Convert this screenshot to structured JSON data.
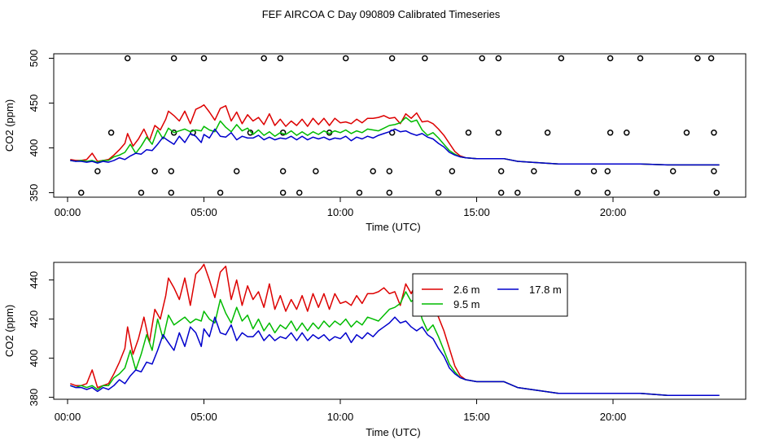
{
  "title": "FEF AIRCOA C  Day 090809  Calibrated Timeseries",
  "colors": {
    "series_2_6": "#dd0000",
    "series_9_5": "#00bb00",
    "series_17_8": "#0000cc",
    "points": "#000000"
  },
  "chart_data": [
    {
      "type": "line",
      "subtitle": "top panel: calibration points and three height series",
      "xlabel": "Time (UTC)",
      "ylabel": "CO2 (ppm)",
      "xlim": [
        0,
        24
      ],
      "ylim": [
        345,
        505
      ],
      "x_ticks": [
        0,
        5,
        10,
        15,
        20
      ],
      "x_tick_labels": [
        "00:00",
        "05:00",
        "10:00",
        "15:00",
        "20:00"
      ],
      "y_ticks": [
        350,
        400,
        450,
        500
      ],
      "y_tick_labels": [
        "350",
        "400",
        "450",
        "500"
      ],
      "grid": false,
      "legend": null,
      "calibration_points": {
        "y500": [
          2.2,
          3.9,
          5.0,
          7.2,
          7.8,
          10.2,
          11.9,
          13.1,
          15.2,
          15.8,
          18.1,
          19.9,
          21.0,
          23.1,
          23.6
        ],
        "y417": [
          1.6,
          3.9,
          4.6,
          6.7,
          7.9,
          9.6,
          11.9,
          14.7,
          15.8,
          17.6,
          19.9,
          20.5,
          22.7,
          23.7
        ],
        "y374": [
          1.1,
          3.2,
          3.8,
          6.2,
          7.9,
          9.1,
          11.2,
          11.8,
          14.1,
          15.9,
          17.1,
          19.3,
          19.8,
          22.2,
          23.7
        ],
        "y350": [
          0.5,
          2.7,
          3.8,
          5.6,
          7.9,
          8.5,
          10.7,
          11.8,
          13.6,
          15.9,
          16.5,
          18.7,
          19.8,
          21.6,
          23.8
        ]
      }
    },
    {
      "type": "line",
      "xlabel": "Time (UTC)",
      "ylabel": "CO2 (ppm)",
      "xlim": [
        0,
        24
      ],
      "ylim": [
        379,
        449
      ],
      "x_ticks": [
        0,
        5,
        10,
        15,
        20
      ],
      "x_tick_labels": [
        "00:00",
        "05:00",
        "10:00",
        "15:00",
        "20:00"
      ],
      "y_ticks": [
        380,
        400,
        420,
        440
      ],
      "y_tick_labels": [
        "380",
        "400",
        "420",
        "440"
      ],
      "grid": false,
      "legend": {
        "position": "top-right",
        "entries": [
          "2.6 m",
          "9.5 m",
          "17.8 m"
        ]
      }
    }
  ],
  "series": [
    {
      "name": "2.6 m",
      "color_key": "series_2_6",
      "points": [
        [
          0.1,
          387
        ],
        [
          0.3,
          386
        ],
        [
          0.5,
          386
        ],
        [
          0.7,
          387
        ],
        [
          0.9,
          394
        ],
        [
          1.1,
          385
        ],
        [
          1.3,
          386
        ],
        [
          1.5,
          387
        ],
        [
          1.7,
          392
        ],
        [
          1.9,
          398
        ],
        [
          2.1,
          405
        ],
        [
          2.2,
          416
        ],
        [
          2.4,
          402
        ],
        [
          2.6,
          410
        ],
        [
          2.8,
          421
        ],
        [
          3.0,
          408
        ],
        [
          3.2,
          425
        ],
        [
          3.4,
          420
        ],
        [
          3.6,
          432
        ],
        [
          3.7,
          441
        ],
        [
          3.9,
          436
        ],
        [
          4.1,
          430
        ],
        [
          4.3,
          441
        ],
        [
          4.5,
          427
        ],
        [
          4.7,
          443
        ],
        [
          4.9,
          446
        ],
        [
          5.0,
          448
        ],
        [
          5.2,
          440
        ],
        [
          5.4,
          431
        ],
        [
          5.6,
          444
        ],
        [
          5.8,
          447
        ],
        [
          6.0,
          430
        ],
        [
          6.2,
          440
        ],
        [
          6.4,
          427
        ],
        [
          6.6,
          437
        ],
        [
          6.8,
          430
        ],
        [
          7.0,
          434
        ],
        [
          7.2,
          426
        ],
        [
          7.4,
          438
        ],
        [
          7.6,
          425
        ],
        [
          7.8,
          432
        ],
        [
          8.0,
          424
        ],
        [
          8.2,
          430
        ],
        [
          8.4,
          425
        ],
        [
          8.6,
          432
        ],
        [
          8.8,
          424
        ],
        [
          9.0,
          433
        ],
        [
          9.2,
          426
        ],
        [
          9.4,
          433
        ],
        [
          9.6,
          425
        ],
        [
          9.8,
          433
        ],
        [
          10.0,
          428
        ],
        [
          10.2,
          429
        ],
        [
          10.4,
          427
        ],
        [
          10.6,
          432
        ],
        [
          10.8,
          428
        ],
        [
          11.0,
          433
        ],
        [
          11.2,
          433
        ],
        [
          11.4,
          434
        ],
        [
          11.6,
          436
        ],
        [
          11.8,
          433
        ],
        [
          12.0,
          434
        ],
        [
          12.2,
          427
        ],
        [
          12.4,
          438
        ],
        [
          12.6,
          433
        ],
        [
          12.8,
          439
        ],
        [
          13.0,
          429
        ],
        [
          13.2,
          430
        ],
        [
          13.4,
          427
        ],
        [
          13.6,
          421
        ],
        [
          13.8,
          414
        ],
        [
          14.0,
          405
        ],
        [
          14.2,
          396
        ],
        [
          14.4,
          391
        ],
        [
          14.6,
          389
        ],
        [
          15.0,
          388
        ],
        [
          15.5,
          388
        ],
        [
          16.0,
          388
        ],
        [
          16.5,
          385
        ],
        [
          17.0,
          384
        ],
        [
          18.0,
          382
        ],
        [
          19.0,
          382
        ],
        [
          20.0,
          382
        ],
        [
          21.0,
          382
        ],
        [
          22.0,
          381
        ],
        [
          23.0,
          381
        ],
        [
          23.9,
          381
        ]
      ]
    },
    {
      "name": "9.5 m",
      "color_key": "series_9_5",
      "points": [
        [
          0.1,
          386
        ],
        [
          0.3,
          385
        ],
        [
          0.5,
          386
        ],
        [
          0.7,
          385
        ],
        [
          0.9,
          386
        ],
        [
          1.1,
          384
        ],
        [
          1.3,
          386
        ],
        [
          1.5,
          386
        ],
        [
          1.7,
          390
        ],
        [
          1.9,
          392
        ],
        [
          2.1,
          395
        ],
        [
          2.3,
          404
        ],
        [
          2.5,
          394
        ],
        [
          2.7,
          402
        ],
        [
          2.9,
          412
        ],
        [
          3.1,
          404
        ],
        [
          3.3,
          420
        ],
        [
          3.5,
          410
        ],
        [
          3.7,
          422
        ],
        [
          3.9,
          417
        ],
        [
          4.1,
          419
        ],
        [
          4.3,
          421
        ],
        [
          4.5,
          418
        ],
        [
          4.7,
          420
        ],
        [
          4.9,
          419
        ],
        [
          5.0,
          424
        ],
        [
          5.2,
          420
        ],
        [
          5.4,
          418
        ],
        [
          5.6,
          430
        ],
        [
          5.8,
          423
        ],
        [
          6.0,
          418
        ],
        [
          6.2,
          426
        ],
        [
          6.4,
          419
        ],
        [
          6.6,
          422
        ],
        [
          6.8,
          415
        ],
        [
          7.0,
          420
        ],
        [
          7.2,
          414
        ],
        [
          7.4,
          418
        ],
        [
          7.6,
          413
        ],
        [
          7.8,
          417
        ],
        [
          8.0,
          415
        ],
        [
          8.2,
          419
        ],
        [
          8.4,
          414
        ],
        [
          8.6,
          418
        ],
        [
          8.8,
          414
        ],
        [
          9.0,
          418
        ],
        [
          9.2,
          415
        ],
        [
          9.4,
          419
        ],
        [
          9.6,
          416
        ],
        [
          9.8,
          419
        ],
        [
          10.0,
          417
        ],
        [
          10.2,
          420
        ],
        [
          10.4,
          416
        ],
        [
          10.6,
          419
        ],
        [
          10.8,
          417
        ],
        [
          11.0,
          421
        ],
        [
          11.2,
          420
        ],
        [
          11.4,
          419
        ],
        [
          11.6,
          422
        ],
        [
          11.8,
          425
        ],
        [
          12.0,
          426
        ],
        [
          12.2,
          428
        ],
        [
          12.4,
          434
        ],
        [
          12.6,
          429
        ],
        [
          12.8,
          431
        ],
        [
          13.0,
          420
        ],
        [
          13.2,
          414
        ],
        [
          13.4,
          417
        ],
        [
          13.6,
          411
        ],
        [
          13.8,
          404
        ],
        [
          14.0,
          397
        ],
        [
          14.2,
          393
        ],
        [
          14.4,
          390
        ],
        [
          14.6,
          389
        ],
        [
          15.0,
          388
        ],
        [
          15.5,
          388
        ],
        [
          16.0,
          388
        ],
        [
          16.5,
          385
        ],
        [
          17.0,
          384
        ],
        [
          18.0,
          382
        ],
        [
          19.0,
          382
        ],
        [
          20.0,
          382
        ],
        [
          21.0,
          382
        ],
        [
          22.0,
          381
        ],
        [
          23.0,
          381
        ],
        [
          23.9,
          381
        ]
      ]
    },
    {
      "name": "17.8 m",
      "color_key": "series_17_8",
      "points": [
        [
          0.1,
          386
        ],
        [
          0.3,
          385
        ],
        [
          0.5,
          385
        ],
        [
          0.7,
          384
        ],
        [
          0.9,
          385
        ],
        [
          1.1,
          383
        ],
        [
          1.3,
          385
        ],
        [
          1.5,
          384
        ],
        [
          1.7,
          386
        ],
        [
          1.9,
          389
        ],
        [
          2.1,
          387
        ],
        [
          2.3,
          391
        ],
        [
          2.5,
          394
        ],
        [
          2.7,
          393
        ],
        [
          2.9,
          398
        ],
        [
          3.1,
          397
        ],
        [
          3.3,
          404
        ],
        [
          3.5,
          412
        ],
        [
          3.7,
          408
        ],
        [
          3.9,
          404
        ],
        [
          4.1,
          413
        ],
        [
          4.3,
          406
        ],
        [
          4.5,
          416
        ],
        [
          4.7,
          413
        ],
        [
          4.9,
          406
        ],
        [
          5.0,
          415
        ],
        [
          5.2,
          411
        ],
        [
          5.4,
          421
        ],
        [
          5.6,
          413
        ],
        [
          5.8,
          412
        ],
        [
          6.0,
          417
        ],
        [
          6.2,
          409
        ],
        [
          6.4,
          413
        ],
        [
          6.6,
          411
        ],
        [
          6.8,
          411
        ],
        [
          7.0,
          414
        ],
        [
          7.2,
          409
        ],
        [
          7.4,
          412
        ],
        [
          7.6,
          409
        ],
        [
          7.8,
          411
        ],
        [
          8.0,
          410
        ],
        [
          8.2,
          413
        ],
        [
          8.4,
          409
        ],
        [
          8.6,
          413
        ],
        [
          8.8,
          409
        ],
        [
          9.0,
          412
        ],
        [
          9.2,
          410
        ],
        [
          9.4,
          412
        ],
        [
          9.6,
          409
        ],
        [
          9.8,
          411
        ],
        [
          10.0,
          410
        ],
        [
          10.2,
          413
        ],
        [
          10.4,
          408
        ],
        [
          10.6,
          412
        ],
        [
          10.8,
          410
        ],
        [
          11.0,
          413
        ],
        [
          11.2,
          411
        ],
        [
          11.4,
          414
        ],
        [
          11.6,
          416
        ],
        [
          11.8,
          418
        ],
        [
          12.0,
          421
        ],
        [
          12.2,
          418
        ],
        [
          12.4,
          419
        ],
        [
          12.6,
          416
        ],
        [
          12.8,
          414
        ],
        [
          13.0,
          416
        ],
        [
          13.2,
          412
        ],
        [
          13.4,
          410
        ],
        [
          13.6,
          405
        ],
        [
          13.8,
          401
        ],
        [
          14.0,
          395
        ],
        [
          14.2,
          392
        ],
        [
          14.4,
          390
        ],
        [
          14.6,
          389
        ],
        [
          15.0,
          388
        ],
        [
          15.5,
          388
        ],
        [
          16.0,
          388
        ],
        [
          16.5,
          385
        ],
        [
          17.0,
          384
        ],
        [
          18.0,
          382
        ],
        [
          19.0,
          382
        ],
        [
          20.0,
          382
        ],
        [
          21.0,
          382
        ],
        [
          22.0,
          381
        ],
        [
          23.0,
          381
        ],
        [
          23.9,
          381
        ]
      ]
    }
  ]
}
